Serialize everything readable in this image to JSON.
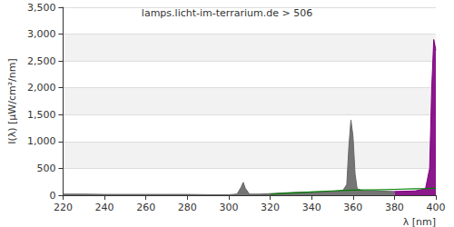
{
  "chart_data": {
    "type": "line",
    "title": "lamps.licht-im-terrarium.de > 506",
    "x_label": "λ [nm]",
    "y_label": "I(λ) [µW/cm²/nm]",
    "x": [
      220,
      230,
      240,
      250,
      260,
      270,
      280,
      290,
      300,
      304,
      306,
      307,
      308,
      310,
      315,
      320,
      330,
      340,
      350,
      355,
      357,
      358,
      359,
      360,
      361,
      362,
      365,
      370,
      380,
      390,
      395,
      397,
      398,
      399,
      400
    ],
    "series": [
      {
        "type": "area",
        "color": "#666666",
        "values": [
          20,
          20,
          15,
          15,
          15,
          15,
          15,
          10,
          10,
          20,
          150,
          240,
          130,
          20,
          20,
          30,
          50,
          60,
          70,
          80,
          200,
          900,
          1400,
          1100,
          400,
          120,
          80,
          80,
          70,
          null,
          null,
          null,
          null,
          null,
          null
        ]
      },
      {
        "type": "area",
        "color": "#800080",
        "values": [
          null,
          null,
          null,
          null,
          null,
          null,
          null,
          null,
          null,
          null,
          null,
          null,
          null,
          null,
          null,
          null,
          null,
          null,
          null,
          null,
          null,
          null,
          null,
          null,
          null,
          null,
          null,
          null,
          70,
          80,
          120,
          500,
          2000,
          2900,
          2700
        ]
      },
      {
        "type": "line",
        "color": "#008000",
        "values": [
          null,
          null,
          null,
          null,
          null,
          null,
          null,
          null,
          null,
          null,
          null,
          null,
          null,
          null,
          null,
          20,
          40,
          60,
          80,
          90,
          90,
          90,
          95,
          95,
          95,
          95,
          100,
          100,
          110,
          120,
          125,
          128,
          130,
          130,
          130
        ]
      }
    ],
    "xlim": [
      220,
      400
    ],
    "xticks": [
      220,
      240,
      260,
      280,
      300,
      320,
      340,
      360,
      380,
      400
    ],
    "ylim": [
      0,
      3500
    ],
    "yticks": [
      0,
      500,
      1000,
      1500,
      2000,
      2500,
      3000,
      3500
    ],
    "grid": true
  }
}
